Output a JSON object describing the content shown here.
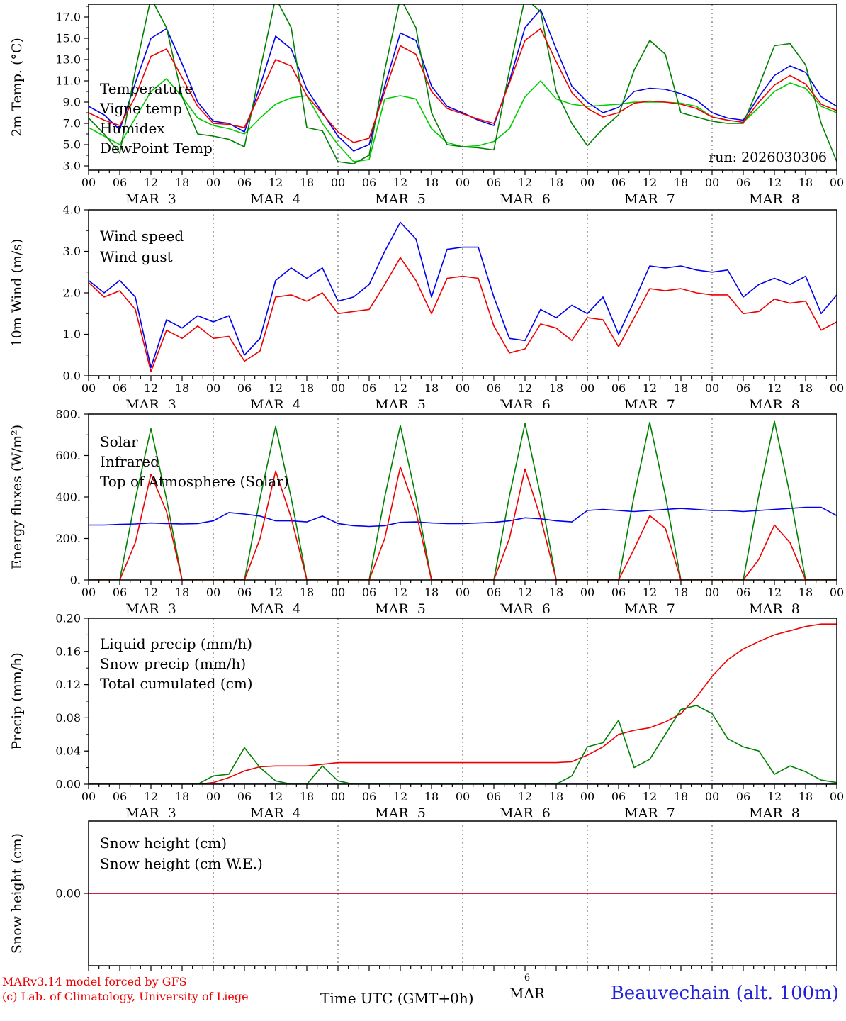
{
  "footer": {
    "left_line1": "MARv3.14 model forced by GFS",
    "left_line2": "(c) Lab. of Climatology, University of Liege",
    "center_label": "Time UTC (GMT+0h)",
    "page_number": "6",
    "month_label": "MAR",
    "station": "Beauvechain (alt. 100m)",
    "colors": {
      "credits": "#ee0000",
      "station": "#2222dd"
    }
  },
  "x_axis": {
    "start": 0,
    "end": 144,
    "step": 3,
    "hour_labels": [
      "00",
      "06",
      "12",
      "18"
    ],
    "day_labels": [
      "MAR  3",
      "MAR  4",
      "MAR  5",
      "MAR  6",
      "MAR  7",
      "MAR  8"
    ]
  },
  "chart_data": [
    {
      "name": "temperature",
      "type": "line",
      "ylabel": "2m Temp. (°C)",
      "ylim": [
        2.6,
        18.2
      ],
      "yticks": [
        3,
        5,
        7,
        9,
        11,
        13,
        15,
        17
      ],
      "ytick_labels": [
        "3.0",
        "5.0",
        "7.0",
        "9.0",
        "11.0",
        "13.0",
        "15.0",
        "17.0"
      ],
      "annotation": "run: 2026030306",
      "series": [
        {
          "name": "Temperature",
          "color": "#ee0000",
          "values": [
            8.0,
            7.3,
            6.8,
            9.5,
            13.3,
            14.0,
            11.3,
            8.6,
            7.0,
            6.9,
            6.6,
            9.8,
            13.0,
            12.4,
            9.6,
            7.9,
            6.2,
            5.2,
            5.6,
            10.0,
            14.3,
            13.5,
            10.0,
            8.4,
            7.9,
            7.4,
            7.0,
            10.8,
            14.8,
            15.9,
            12.8,
            9.9,
            8.4,
            7.6,
            8.0,
            8.9,
            9.1,
            9.0,
            8.8,
            8.4,
            7.6,
            7.3,
            7.1,
            9.0,
            10.6,
            11.5,
            10.7,
            8.8,
            8.2
          ]
        },
        {
          "name": "Vigne temp",
          "color": "#008000",
          "values": [
            7.5,
            6.0,
            4.2,
            12.0,
            18.8,
            16.0,
            9.5,
            6.0,
            5.8,
            5.5,
            4.8,
            12.0,
            18.8,
            16.0,
            6.6,
            6.3,
            3.4,
            3.2,
            4.0,
            12.0,
            18.8,
            16.0,
            8.0,
            5.0,
            4.8,
            4.7,
            4.5,
            12.0,
            18.8,
            17.5,
            10.0,
            7.0,
            4.9,
            6.5,
            7.8,
            12.0,
            14.8,
            13.5,
            8.0,
            7.6,
            7.2,
            7.0,
            7.0,
            10.5,
            14.3,
            14.5,
            12.5,
            7.0,
            3.4
          ]
        },
        {
          "name": "Humidex",
          "color": "#0000ee",
          "values": [
            8.6,
            7.8,
            6.4,
            10.8,
            15.0,
            15.9,
            12.6,
            9.0,
            7.2,
            7.0,
            6.2,
            10.5,
            15.2,
            14.0,
            10.2,
            8.0,
            5.8,
            4.4,
            5.0,
            10.5,
            15.5,
            14.8,
            10.5,
            8.6,
            8.0,
            7.3,
            6.8,
            11.0,
            16.0,
            17.7,
            14.0,
            10.5,
            9.0,
            8.0,
            8.5,
            10.0,
            10.3,
            10.2,
            9.8,
            9.2,
            8.0,
            7.5,
            7.3,
            9.5,
            11.5,
            12.4,
            11.8,
            9.5,
            8.6
          ]
        },
        {
          "name": "DewPoint Temp",
          "color": "#00cc00",
          "values": [
            6.6,
            5.8,
            5.0,
            7.5,
            10.0,
            11.2,
            9.5,
            7.5,
            6.8,
            6.5,
            6.0,
            7.5,
            8.8,
            9.4,
            9.6,
            7.0,
            5.0,
            3.4,
            3.6,
            9.3,
            9.6,
            9.3,
            6.5,
            5.2,
            4.8,
            4.9,
            5.3,
            6.5,
            9.5,
            11.0,
            9.3,
            8.8,
            8.6,
            8.7,
            8.8,
            9.0,
            9.0,
            9.0,
            8.9,
            8.6,
            7.6,
            7.3,
            7.1,
            8.5,
            10.0,
            10.8,
            10.3,
            8.6,
            8.0
          ]
        }
      ]
    },
    {
      "name": "wind",
      "type": "line",
      "ylabel": "10m Wind (m/s)",
      "ylim": [
        0,
        4
      ],
      "yticks": [
        0,
        1,
        2,
        3,
        4
      ],
      "ytick_labels": [
        "0.0",
        "1.0",
        "2.0",
        "3.0",
        "4.0"
      ],
      "series": [
        {
          "name": "Wind speed",
          "color": "#ee0000",
          "values": [
            2.25,
            1.9,
            2.05,
            1.6,
            0.1,
            1.1,
            0.9,
            1.2,
            0.9,
            0.95,
            0.35,
            0.6,
            1.9,
            1.95,
            1.8,
            2.0,
            1.5,
            1.55,
            1.6,
            2.2,
            2.85,
            2.3,
            1.5,
            2.35,
            2.4,
            2.35,
            1.2,
            0.55,
            0.65,
            1.25,
            1.15,
            0.85,
            1.4,
            1.35,
            0.7,
            1.4,
            2.1,
            2.05,
            2.1,
            2.0,
            1.95,
            1.95,
            1.5,
            1.55,
            1.85,
            1.75,
            1.8,
            1.1,
            1.3
          ]
        },
        {
          "name": "Wind gust",
          "color": "#0000ee",
          "values": [
            2.3,
            2.0,
            2.3,
            1.9,
            0.2,
            1.35,
            1.15,
            1.45,
            1.3,
            1.45,
            0.5,
            0.9,
            2.3,
            2.6,
            2.35,
            2.6,
            1.8,
            1.9,
            2.2,
            3.0,
            3.7,
            3.3,
            1.9,
            3.05,
            3.1,
            3.1,
            1.9,
            0.9,
            0.85,
            1.6,
            1.4,
            1.7,
            1.5,
            1.9,
            1.0,
            1.8,
            2.65,
            2.6,
            2.65,
            2.55,
            2.5,
            2.55,
            1.9,
            2.2,
            2.35,
            2.2,
            2.4,
            1.5,
            1.95
          ]
        }
      ]
    },
    {
      "name": "energy-fluxes",
      "type": "line",
      "ylabel": "Energy fluxes (W/m²)",
      "ylim": [
        0,
        800
      ],
      "yticks": [
        0,
        200,
        400,
        600,
        800
      ],
      "ytick_labels": [
        "0.",
        "200.",
        "400.",
        "600.",
        "800."
      ],
      "series": [
        {
          "name": "Solar",
          "color": "#ee0000",
          "values": [
            0,
            0,
            0,
            180,
            510,
            330,
            0,
            0,
            0,
            0,
            0,
            200,
            525,
            300,
            0,
            0,
            0,
            0,
            0,
            200,
            545,
            330,
            0,
            0,
            0,
            0,
            0,
            200,
            535,
            300,
            0,
            0,
            0,
            0,
            0,
            150,
            310,
            250,
            0,
            0,
            0,
            0,
            0,
            100,
            265,
            180,
            0,
            0,
            0
          ]
        },
        {
          "name": "Infrared",
          "color": "#0000ee",
          "values": [
            265,
            265,
            268,
            270,
            275,
            272,
            270,
            272,
            285,
            325,
            318,
            308,
            285,
            285,
            280,
            308,
            272,
            262,
            258,
            262,
            278,
            280,
            275,
            272,
            272,
            275,
            278,
            285,
            300,
            295,
            285,
            280,
            335,
            340,
            335,
            330,
            335,
            340,
            345,
            340,
            335,
            335,
            330,
            335,
            340,
            345,
            350,
            350,
            310
          ]
        },
        {
          "name": "Top of Atmosphere (Solar)",
          "color": "#008000",
          "values": [
            0,
            0,
            0,
            390,
            730,
            390,
            0,
            0,
            0,
            0,
            0,
            395,
            740,
            395,
            0,
            0,
            0,
            0,
            0,
            400,
            745,
            400,
            0,
            0,
            0,
            0,
            0,
            405,
            755,
            405,
            0,
            0,
            0,
            0,
            0,
            408,
            760,
            408,
            0,
            0,
            0,
            0,
            0,
            410,
            765,
            410,
            0,
            0,
            0
          ]
        }
      ]
    },
    {
      "name": "precip",
      "type": "line",
      "ylabel": "Precip (mm/h)",
      "ylim": [
        0,
        0.2
      ],
      "yticks": [
        0,
        0.04,
        0.08,
        0.12,
        0.16,
        0.2
      ],
      "ytick_labels": [
        "0.00",
        "0.04",
        "0.08",
        "0.12",
        "0.16",
        "0.20"
      ],
      "series": [
        {
          "name": "Liquid precip (mm/h)",
          "color": "#008000",
          "values": [
            0,
            0,
            0,
            0,
            0,
            0,
            0,
            0,
            0.01,
            0.012,
            0.044,
            0.02,
            0.004,
            0,
            0,
            0.022,
            0.004,
            0,
            0,
            0,
            0,
            0,
            0,
            0,
            0,
            0,
            0,
            0,
            0,
            0,
            0,
            0.01,
            0.045,
            0.05,
            0.077,
            0.02,
            0.03,
            0.06,
            0.09,
            0.095,
            0.085,
            0.055,
            0.045,
            0.04,
            0.012,
            0.022,
            0.015,
            0.005,
            0.002
          ]
        },
        {
          "name": "Snow precip (mm/h)",
          "color": "#0000ee",
          "values": [
            0,
            0,
            0,
            0,
            0,
            0,
            0,
            0,
            0,
            0,
            0,
            0,
            0,
            0,
            0,
            0,
            0,
            0,
            0,
            0,
            0,
            0,
            0,
            0,
            0,
            0,
            0,
            0,
            0,
            0,
            0,
            0,
            0,
            0,
            0,
            0,
            0,
            0,
            0,
            0,
            0,
            0,
            0,
            0,
            0,
            0,
            0,
            0,
            0
          ]
        },
        {
          "name": "Total cumulated (cm)",
          "color": "#ee0000",
          "values": [
            0,
            0,
            0,
            0,
            0,
            0,
            0,
            0,
            0.002,
            0.008,
            0.016,
            0.021,
            0.022,
            0.022,
            0.022,
            0.024,
            0.026,
            0.026,
            0.026,
            0.026,
            0.026,
            0.026,
            0.026,
            0.026,
            0.026,
            0.026,
            0.026,
            0.026,
            0.026,
            0.026,
            0.026,
            0.027,
            0.035,
            0.045,
            0.06,
            0.065,
            0.068,
            0.075,
            0.085,
            0.105,
            0.13,
            0.15,
            0.163,
            0.172,
            0.18,
            0.185,
            0.19,
            0.193,
            0.193
          ]
        }
      ]
    },
    {
      "name": "snow-height",
      "type": "line",
      "ylabel": "Snow height (cm)",
      "ylim": [
        -1,
        1
      ],
      "yticks": [
        0
      ],
      "ytick_labels": [
        "0.00"
      ],
      "series": [
        {
          "name": "Snow height (cm)",
          "color": "#ee0000",
          "values": [
            0,
            0,
            0,
            0,
            0,
            0,
            0,
            0,
            0,
            0,
            0,
            0,
            0,
            0,
            0,
            0,
            0,
            0,
            0,
            0,
            0,
            0,
            0,
            0,
            0,
            0,
            0,
            0,
            0,
            0,
            0,
            0,
            0,
            0,
            0,
            0,
            0,
            0,
            0,
            0,
            0,
            0,
            0,
            0,
            0,
            0,
            0,
            0,
            0
          ]
        },
        {
          "name": "Snow height (cm W.E.)",
          "color": "#0000ee",
          "values": [
            0,
            0,
            0,
            0,
            0,
            0,
            0,
            0,
            0,
            0,
            0,
            0,
            0,
            0,
            0,
            0,
            0,
            0,
            0,
            0,
            0,
            0,
            0,
            0,
            0,
            0,
            0,
            0,
            0,
            0,
            0,
            0,
            0,
            0,
            0,
            0,
            0,
            0,
            0,
            0,
            0,
            0,
            0,
            0,
            0,
            0,
            0,
            0,
            0
          ]
        }
      ]
    }
  ]
}
